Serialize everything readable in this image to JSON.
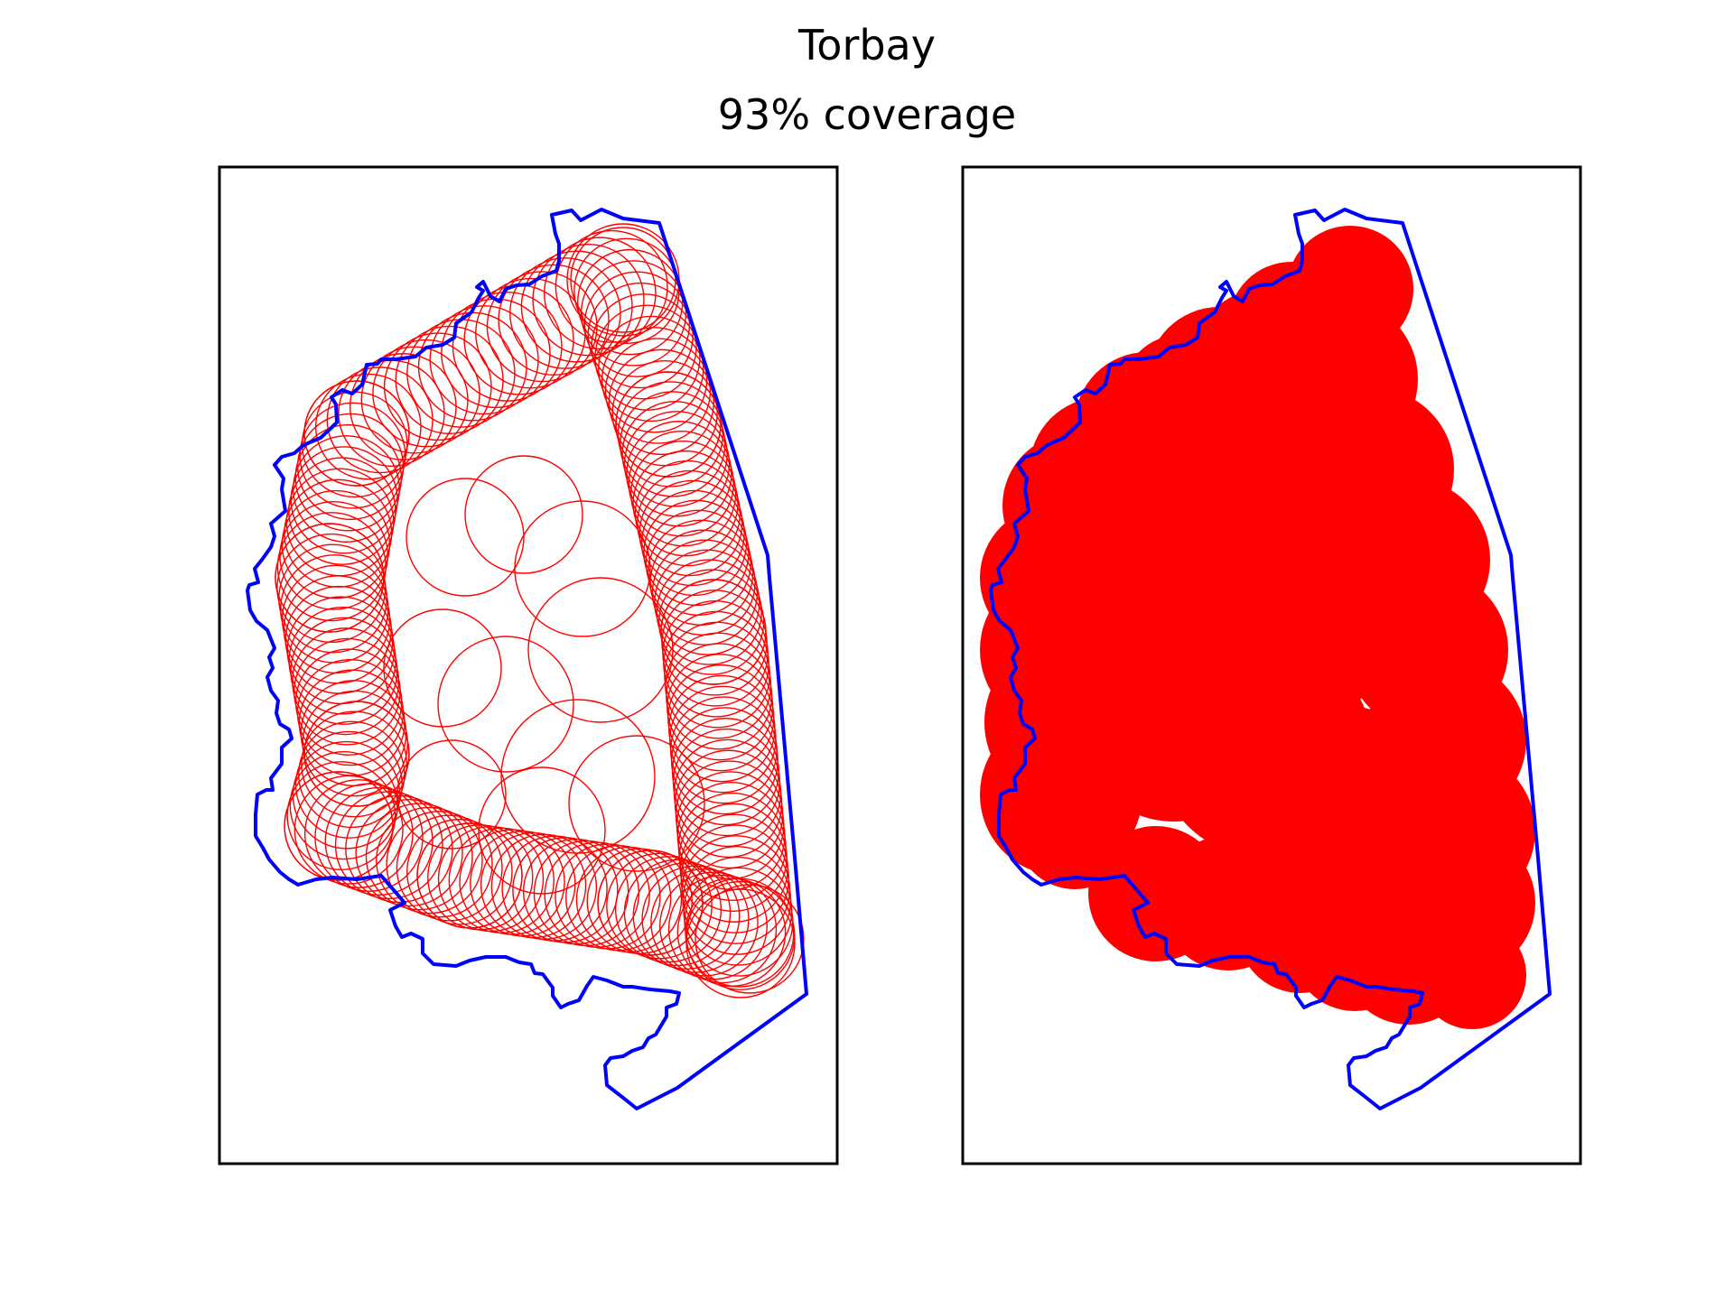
{
  "figure": {
    "title": "Torbay",
    "subtitle": "93% coverage"
  },
  "colors": {
    "boundary": "#0000ff",
    "coverage": "#ff0000",
    "frame": "#000000",
    "background": "#ffffff"
  },
  "chart_data": [
    {
      "type": "map",
      "panel": "left",
      "style": "circle outlines",
      "title": "",
      "axes": "none",
      "region": "Torbay boundary outline",
      "coverage_layer": "overlapping circle outlines tracing the region edges"
    },
    {
      "type": "map",
      "panel": "right",
      "style": "filled coverage",
      "title": "",
      "axes": "none",
      "region": "Torbay boundary outline",
      "coverage_layer": "filled union of circles"
    }
  ]
}
